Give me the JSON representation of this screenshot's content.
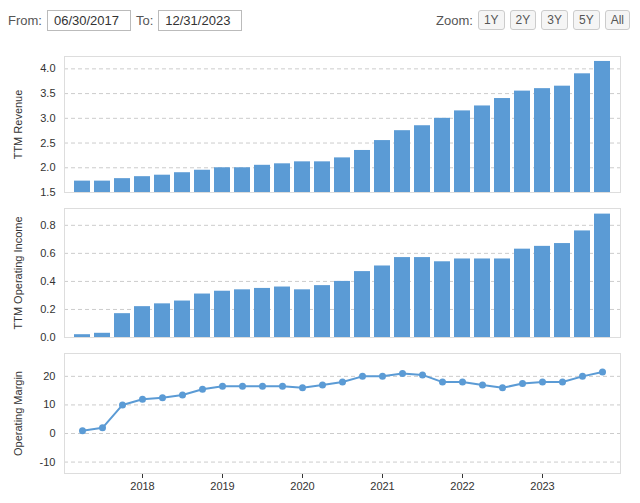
{
  "controls": {
    "from_label": "From:",
    "from": "06/30/2017",
    "to_label": "To:",
    "to": "12/31/2023",
    "zoom_label": "Zoom:",
    "zoom_buttons": [
      "1Y",
      "2Y",
      "3Y",
      "5Y",
      "All"
    ]
  },
  "chart_data": [
    {
      "type": "bar",
      "y_label": "TTM Revenue",
      "color": "#5b9bd5",
      "grid": true,
      "tick_labels": "y",
      "categories": [
        null,
        null,
        null,
        null,
        null,
        null,
        null,
        null,
        null,
        null,
        null,
        null,
        null,
        null,
        null,
        null,
        null,
        null,
        null,
        null,
        null,
        null,
        null,
        null,
        null,
        null,
        null
      ],
      "values": [
        1.73,
        1.73,
        1.78,
        1.82,
        1.85,
        1.9,
        1.95,
        2.0,
        2.0,
        2.05,
        2.08,
        2.12,
        2.12,
        2.2,
        2.35,
        2.55,
        2.75,
        2.85,
        3.0,
        3.15,
        3.25,
        3.4,
        3.55,
        3.6,
        3.65,
        3.9,
        4.15
      ],
      "ylim": [
        1.5,
        4.25
      ],
      "yticks": [
        {
          "value": 1.5,
          "label": "1.5"
        },
        {
          "value": 2,
          "label": "2.0"
        },
        {
          "value": 2.5,
          "label": "2.5"
        },
        {
          "value": 3,
          "label": "3.0"
        },
        {
          "value": 3.5,
          "label": "3.5"
        },
        {
          "value": 4,
          "label": "4.0"
        }
      ]
    },
    {
      "type": "bar",
      "y_label": "TTM Operating Income",
      "color": "#5b9bd5",
      "grid": true,
      "tick_labels": "y",
      "categories": [
        null,
        null,
        null,
        null,
        null,
        null,
        null,
        null,
        null,
        null,
        null,
        null,
        null,
        null,
        null,
        null,
        null,
        null,
        null,
        null,
        null,
        null,
        null,
        null,
        null,
        null,
        null
      ],
      "values": [
        0.02,
        0.03,
        0.17,
        0.22,
        0.24,
        0.26,
        0.31,
        0.33,
        0.34,
        0.35,
        0.36,
        0.34,
        0.37,
        0.4,
        0.47,
        0.51,
        0.57,
        0.57,
        0.54,
        0.56,
        0.56,
        0.56,
        0.63,
        0.65,
        0.67,
        0.76,
        0.88
      ],
      "ylim": [
        0,
        0.92
      ],
      "yticks": [
        {
          "value": 0,
          "label": "0.0"
        },
        {
          "value": 0.2,
          "label": "0.2"
        },
        {
          "value": 0.4,
          "label": "0.4"
        },
        {
          "value": 0.6,
          "label": "0.6"
        },
        {
          "value": 0.8,
          "label": "0.8"
        }
      ]
    },
    {
      "type": "line",
      "y_label": "Operating Margin",
      "color": "#5b9bd5",
      "marker": "circle",
      "grid": true,
      "categories": [
        null,
        null,
        null,
        "2018",
        null,
        null,
        null,
        "2019",
        null,
        null,
        null,
        "2020",
        null,
        null,
        null,
        "2021",
        null,
        null,
        null,
        "2022",
        null,
        null,
        null,
        "2023",
        null,
        null,
        null
      ],
      "values": [
        1,
        2,
        10,
        12,
        12.5,
        13.5,
        15.5,
        16.5,
        16.5,
        16.5,
        16.5,
        16,
        17,
        18,
        20,
        20,
        21,
        20.5,
        18,
        18,
        17,
        16,
        17.5,
        18,
        18,
        20,
        21.5
      ],
      "ylim": [
        -14,
        28
      ],
      "yticks": [
        -10,
        0,
        10,
        20
      ]
    }
  ]
}
